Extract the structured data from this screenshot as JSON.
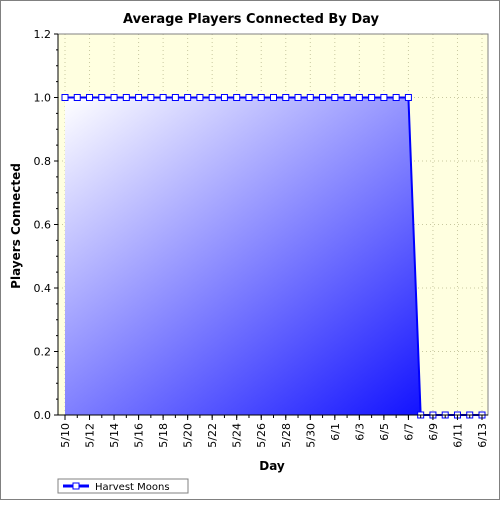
{
  "chart_data": {
    "type": "area",
    "title": "Average Players Connected By Day",
    "xlabel": "Day",
    "ylabel": "Players Connected",
    "ylim": [
      0,
      1.2
    ],
    "y_ticks": [
      "0.0",
      "0.2",
      "0.4",
      "0.6",
      "0.8",
      "1.0",
      "1.2"
    ],
    "x_tick_labels": [
      "5/10",
      "5/12",
      "5/14",
      "5/16",
      "5/18",
      "5/20",
      "5/22",
      "5/24",
      "5/26",
      "5/28",
      "5/30",
      "6/1",
      "6/3",
      "6/5",
      "6/7",
      "6/9",
      "6/11",
      "6/13"
    ],
    "grid": true,
    "legend": "bottom-left",
    "series": [
      {
        "name": "Harvest Moons",
        "color": "#0000ff",
        "x": [
          "5/10",
          "5/11",
          "5/12",
          "5/13",
          "5/14",
          "5/15",
          "5/16",
          "5/17",
          "5/18",
          "5/19",
          "5/20",
          "5/21",
          "5/22",
          "5/23",
          "5/24",
          "5/25",
          "5/26",
          "5/27",
          "5/28",
          "5/29",
          "5/30",
          "5/31",
          "6/1",
          "6/2",
          "6/3",
          "6/4",
          "6/5",
          "6/6",
          "6/7",
          "6/8",
          "6/9",
          "6/10",
          "6/11",
          "6/12",
          "6/13"
        ],
        "values": [
          1,
          1,
          1,
          1,
          1,
          1,
          1,
          1,
          1,
          1,
          1,
          1,
          1,
          1,
          1,
          1,
          1,
          1,
          1,
          1,
          1,
          1,
          1,
          1,
          1,
          1,
          1,
          1,
          1,
          0,
          0,
          0,
          0,
          0,
          0
        ]
      }
    ],
    "colors": {
      "plot_background": "#ffffe0",
      "area_light": "#ffffff",
      "area_dark": "#0000ff",
      "grid": "#c8c8a0"
    }
  }
}
